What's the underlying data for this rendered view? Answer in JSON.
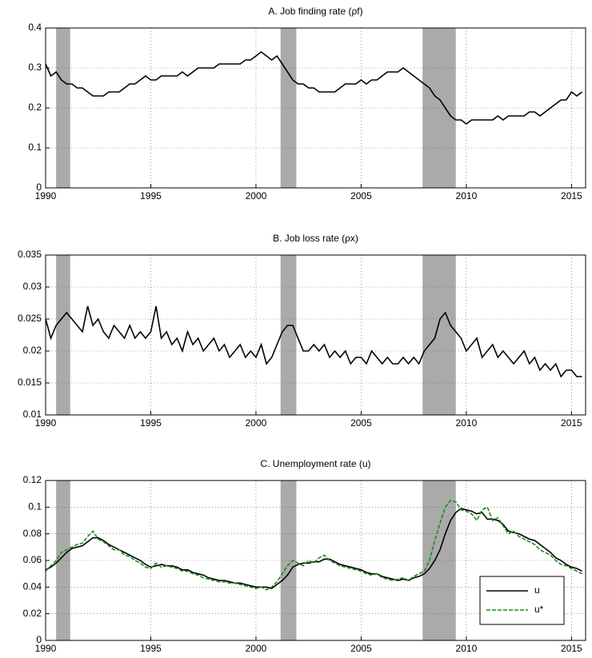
{
  "chart_data": [
    {
      "type": "line",
      "title": "A. Job finding rate (ρf)",
      "x": [
        1990,
        1990.25,
        1990.5,
        1990.75,
        1991,
        1991.25,
        1991.5,
        1991.75,
        1992,
        1992.25,
        1992.5,
        1992.75,
        1993,
        1993.25,
        1993.5,
        1993.75,
        1994,
        1994.25,
        1994.5,
        1994.75,
        1995,
        1995.25,
        1995.5,
        1995.75,
        1996,
        1996.25,
        1996.5,
        1996.75,
        1997,
        1997.25,
        1997.5,
        1997.75,
        1998,
        1998.25,
        1998.5,
        1998.75,
        1999,
        1999.25,
        1999.5,
        1999.75,
        2000,
        2000.25,
        2000.5,
        2000.75,
        2001,
        2001.25,
        2001.5,
        2001.75,
        2002,
        2002.25,
        2002.5,
        2002.75,
        2003,
        2003.25,
        2003.5,
        2003.75,
        2004,
        2004.25,
        2004.5,
        2004.75,
        2005,
        2005.25,
        2005.5,
        2005.75,
        2006,
        2006.25,
        2006.5,
        2006.75,
        2007,
        2007.25,
        2007.5,
        2007.75,
        2008,
        2008.25,
        2008.5,
        2008.75,
        2009,
        2009.25,
        2009.5,
        2009.75,
        2010,
        2010.25,
        2010.5,
        2010.75,
        2011,
        2011.25,
        2011.5,
        2011.75,
        2012,
        2012.25,
        2012.5,
        2012.75,
        2013,
        2013.25,
        2013.5,
        2013.75,
        2014,
        2014.25,
        2014.5,
        2014.75,
        2015,
        2015.25,
        2015.5
      ],
      "series": [
        {
          "name": "ρf",
          "color": "#000000",
          "linestyle": "solid",
          "values": [
            0.31,
            0.28,
            0.29,
            0.27,
            0.26,
            0.26,
            0.25,
            0.25,
            0.24,
            0.23,
            0.23,
            0.23,
            0.24,
            0.24,
            0.24,
            0.25,
            0.26,
            0.26,
            0.27,
            0.28,
            0.27,
            0.27,
            0.28,
            0.28,
            0.28,
            0.28,
            0.29,
            0.28,
            0.29,
            0.3,
            0.3,
            0.3,
            0.3,
            0.31,
            0.31,
            0.31,
            0.31,
            0.31,
            0.32,
            0.32,
            0.33,
            0.34,
            0.33,
            0.32,
            0.33,
            0.31,
            0.29,
            0.27,
            0.26,
            0.26,
            0.25,
            0.25,
            0.24,
            0.24,
            0.24,
            0.24,
            0.25,
            0.26,
            0.26,
            0.26,
            0.27,
            0.26,
            0.27,
            0.27,
            0.28,
            0.29,
            0.29,
            0.29,
            0.3,
            0.29,
            0.28,
            0.27,
            0.26,
            0.25,
            0.23,
            0.22,
            0.2,
            0.18,
            0.17,
            0.17,
            0.16,
            0.17,
            0.17,
            0.17,
            0.17,
            0.17,
            0.18,
            0.17,
            0.18,
            0.18,
            0.18,
            0.18,
            0.19,
            0.19,
            0.18,
            0.19,
            0.2,
            0.21,
            0.22,
            0.22,
            0.24,
            0.23,
            0.24
          ]
        }
      ],
      "recessions": [
        [
          1990.5,
          1991.17
        ],
        [
          2001.17,
          2001.92
        ],
        [
          2007.92,
          2009.5
        ]
      ],
      "xlim": [
        1990,
        2015.67
      ],
      "xticks": [
        1990,
        1995,
        2000,
        2005,
        2010,
        2015
      ],
      "ylim": [
        0,
        0.4
      ],
      "yticks": [
        0,
        0.1,
        0.2,
        0.3,
        0.4
      ],
      "grid": true
    },
    {
      "type": "line",
      "title": "B. Job loss rate (ρx)",
      "x": [
        1990,
        1990.25,
        1990.5,
        1990.75,
        1991,
        1991.25,
        1991.5,
        1991.75,
        1992,
        1992.25,
        1992.5,
        1992.75,
        1993,
        1993.25,
        1993.5,
        1993.75,
        1994,
        1994.25,
        1994.5,
        1994.75,
        1995,
        1995.25,
        1995.5,
        1995.75,
        1996,
        1996.25,
        1996.5,
        1996.75,
        1997,
        1997.25,
        1997.5,
        1997.75,
        1998,
        1998.25,
        1998.5,
        1998.75,
        1999,
        1999.25,
        1999.5,
        1999.75,
        2000,
        2000.25,
        2000.5,
        2000.75,
        2001,
        2001.25,
        2001.5,
        2001.75,
        2002,
        2002.25,
        2002.5,
        2002.75,
        2003,
        2003.25,
        2003.5,
        2003.75,
        2004,
        2004.25,
        2004.5,
        2004.75,
        2005,
        2005.25,
        2005.5,
        2005.75,
        2006,
        2006.25,
        2006.5,
        2006.75,
        2007,
        2007.25,
        2007.5,
        2007.75,
        2008,
        2008.25,
        2008.5,
        2008.75,
        2009,
        2009.25,
        2009.5,
        2009.75,
        2010,
        2010.25,
        2010.5,
        2010.75,
        2011,
        2011.25,
        2011.5,
        2011.75,
        2012,
        2012.25,
        2012.5,
        2012.75,
        2013,
        2013.25,
        2013.5,
        2013.75,
        2014,
        2014.25,
        2014.5,
        2014.75,
        2015,
        2015.25,
        2015.5
      ],
      "series": [
        {
          "name": "ρx",
          "color": "#000000",
          "linestyle": "solid",
          "values": [
            0.025,
            0.022,
            0.024,
            0.025,
            0.026,
            0.025,
            0.024,
            0.023,
            0.027,
            0.024,
            0.025,
            0.023,
            0.022,
            0.024,
            0.023,
            0.022,
            0.024,
            0.022,
            0.023,
            0.022,
            0.023,
            0.027,
            0.022,
            0.023,
            0.021,
            0.022,
            0.02,
            0.023,
            0.021,
            0.022,
            0.02,
            0.021,
            0.022,
            0.02,
            0.021,
            0.019,
            0.02,
            0.021,
            0.019,
            0.02,
            0.019,
            0.021,
            0.018,
            0.019,
            0.021,
            0.023,
            0.024,
            0.024,
            0.022,
            0.02,
            0.02,
            0.021,
            0.02,
            0.021,
            0.019,
            0.02,
            0.019,
            0.02,
            0.018,
            0.019,
            0.019,
            0.018,
            0.02,
            0.019,
            0.018,
            0.019,
            0.018,
            0.018,
            0.019,
            0.018,
            0.019,
            0.018,
            0.02,
            0.021,
            0.022,
            0.025,
            0.026,
            0.024,
            0.023,
            0.022,
            0.02,
            0.021,
            0.022,
            0.019,
            0.02,
            0.021,
            0.019,
            0.02,
            0.019,
            0.018,
            0.019,
            0.02,
            0.018,
            0.019,
            0.017,
            0.018,
            0.017,
            0.018,
            0.016,
            0.017,
            0.017,
            0.016,
            0.016
          ]
        }
      ],
      "recessions": [
        [
          1990.5,
          1991.17
        ],
        [
          2001.17,
          2001.92
        ],
        [
          2007.92,
          2009.5
        ]
      ],
      "xlim": [
        1990,
        2015.67
      ],
      "xticks": [
        1990,
        1995,
        2000,
        2005,
        2010,
        2015
      ],
      "ylim": [
        0.01,
        0.035
      ],
      "yticks": [
        0.01,
        0.015,
        0.02,
        0.025,
        0.03,
        0.035
      ],
      "grid": true
    },
    {
      "type": "line",
      "title": "C. Unemployment rate (u)",
      "x": [
        1990,
        1990.25,
        1990.5,
        1990.75,
        1991,
        1991.25,
        1991.5,
        1991.75,
        1992,
        1992.25,
        1992.5,
        1992.75,
        1993,
        1993.25,
        1993.5,
        1993.75,
        1994,
        1994.25,
        1994.5,
        1994.75,
        1995,
        1995.25,
        1995.5,
        1995.75,
        1996,
        1996.25,
        1996.5,
        1996.75,
        1997,
        1997.25,
        1997.5,
        1997.75,
        1998,
        1998.25,
        1998.5,
        1998.75,
        1999,
        1999.25,
        1999.5,
        1999.75,
        2000,
        2000.25,
        2000.5,
        2000.75,
        2001,
        2001.25,
        2001.5,
        2001.75,
        2002,
        2002.25,
        2002.5,
        2002.75,
        2003,
        2003.25,
        2003.5,
        2003.75,
        2004,
        2004.25,
        2004.5,
        2004.75,
        2005,
        2005.25,
        2005.5,
        2005.75,
        2006,
        2006.25,
        2006.5,
        2006.75,
        2007,
        2007.25,
        2007.5,
        2007.75,
        2008,
        2008.25,
        2008.5,
        2008.75,
        2009,
        2009.25,
        2009.5,
        2009.75,
        2010,
        2010.25,
        2010.5,
        2010.75,
        2011,
        2011.25,
        2011.5,
        2011.75,
        2012,
        2012.25,
        2012.5,
        2012.75,
        2013,
        2013.25,
        2013.5,
        2013.75,
        2014,
        2014.25,
        2014.5,
        2014.75,
        2015,
        2015.25,
        2015.5
      ],
      "series": [
        {
          "name": "u",
          "color": "#000000",
          "linestyle": "solid",
          "values": [
            0.053,
            0.055,
            0.058,
            0.062,
            0.066,
            0.069,
            0.07,
            0.071,
            0.074,
            0.077,
            0.077,
            0.075,
            0.072,
            0.07,
            0.068,
            0.066,
            0.064,
            0.062,
            0.06,
            0.057,
            0.055,
            0.056,
            0.057,
            0.056,
            0.056,
            0.055,
            0.053,
            0.053,
            0.051,
            0.05,
            0.049,
            0.047,
            0.046,
            0.045,
            0.045,
            0.044,
            0.043,
            0.043,
            0.042,
            0.041,
            0.04,
            0.04,
            0.04,
            0.039,
            0.042,
            0.045,
            0.049,
            0.055,
            0.057,
            0.058,
            0.058,
            0.059,
            0.059,
            0.061,
            0.061,
            0.059,
            0.057,
            0.056,
            0.055,
            0.054,
            0.053,
            0.051,
            0.05,
            0.05,
            0.048,
            0.047,
            0.046,
            0.045,
            0.046,
            0.045,
            0.047,
            0.048,
            0.05,
            0.054,
            0.06,
            0.068,
            0.08,
            0.09,
            0.096,
            0.099,
            0.098,
            0.097,
            0.095,
            0.096,
            0.091,
            0.091,
            0.09,
            0.087,
            0.082,
            0.081,
            0.08,
            0.078,
            0.076,
            0.075,
            0.072,
            0.069,
            0.066,
            0.062,
            0.06,
            0.057,
            0.055,
            0.054,
            0.052
          ]
        },
        {
          "name": "u*",
          "color": "#1a8a1a",
          "linestyle": "dashed",
          "values": [
            0.052,
            0.056,
            0.06,
            0.066,
            0.068,
            0.07,
            0.072,
            0.073,
            0.078,
            0.082,
            0.076,
            0.074,
            0.071,
            0.068,
            0.068,
            0.064,
            0.063,
            0.06,
            0.058,
            0.055,
            0.054,
            0.058,
            0.055,
            0.056,
            0.055,
            0.054,
            0.052,
            0.052,
            0.05,
            0.049,
            0.047,
            0.046,
            0.045,
            0.044,
            0.044,
            0.043,
            0.043,
            0.042,
            0.041,
            0.04,
            0.039,
            0.04,
            0.038,
            0.04,
            0.044,
            0.05,
            0.056,
            0.06,
            0.058,
            0.056,
            0.06,
            0.058,
            0.062,
            0.064,
            0.06,
            0.058,
            0.056,
            0.055,
            0.054,
            0.053,
            0.052,
            0.05,
            0.049,
            0.05,
            0.047,
            0.046,
            0.045,
            0.046,
            0.047,
            0.045,
            0.048,
            0.05,
            0.052,
            0.06,
            0.075,
            0.088,
            0.1,
            0.105,
            0.104,
            0.098,
            0.097,
            0.095,
            0.09,
            0.098,
            0.1,
            0.09,
            0.092,
            0.086,
            0.08,
            0.082,
            0.078,
            0.076,
            0.074,
            0.072,
            0.068,
            0.066,
            0.064,
            0.06,
            0.057,
            0.056,
            0.054,
            0.052,
            0.05
          ]
        }
      ],
      "recessions": [
        [
          1990.5,
          1991.17
        ],
        [
          2001.17,
          2001.92
        ],
        [
          2007.92,
          2009.5
        ]
      ],
      "xlim": [
        1990,
        2015.67
      ],
      "xticks": [
        1990,
        1995,
        2000,
        2005,
        2010,
        2015
      ],
      "ylim": [
        0,
        0.12
      ],
      "yticks": [
        0,
        0.02,
        0.04,
        0.06,
        0.08,
        0.1,
        0.12
      ],
      "grid": true,
      "legend": "lower right"
    }
  ]
}
